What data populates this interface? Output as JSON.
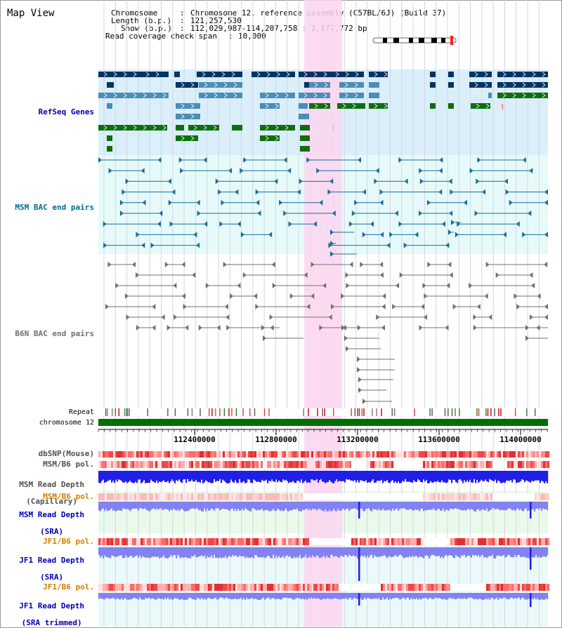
{
  "view": {
    "title": "Map View"
  },
  "header": {
    "chromosome_key": "Chromosome",
    "chromosome_value": "Chromosome 12, reference assembly (C57BL/6J) (Build 37)",
    "length_key": "Length (b.p.)",
    "length_value": "121,257,530",
    "show_key": "Show (b.p.)",
    "show_value": "112,029,987-114,207,758 : 2,177,772 bp",
    "coverage_key": "Read coverage check span",
    "coverage_value": "10,000"
  },
  "tracks": {
    "refseq": "RefSeq Genes",
    "msm_bac": "MSM BAC end pairs",
    "b6n_bac": "B6N BAC end pairs",
    "repeat": "Repeat",
    "chromosome": "chromosome 12",
    "dbsnp": "dbSNP(Mouse)",
    "msm_b6_pol_1": "MSM/B6 pol.",
    "msm_depth_cap_1": "MSM Read Depth",
    "msm_depth_cap_2": "(Capillary)",
    "msm_b6_pol_2": "MSM/B6 pol.",
    "msm_depth_sra_1": "MSM Read Depth",
    "msm_depth_sra_2": "(SRA)",
    "jf1_b6_pol_1": "JF1/B6 pol.",
    "jf1_depth_sra_1": "JF1 Read Depth",
    "jf1_depth_sra_2": "(SRA)",
    "jf1_b6_pol_2": "JF1/B6 pol.",
    "jf1_depth_trim_1": "JF1 Read Depth",
    "jf1_depth_trim_2": "(SRA trimmed)"
  },
  "axis": {
    "ticks": [
      "112400000",
      "112800000",
      "113200000",
      "113600000",
      "114000000"
    ]
  },
  "colors": {
    "refseq_bg": "#daeffa",
    "msm_bac_bg": "#e6fafa",
    "highlight": "#fbd5f0",
    "chromosome_bar": "#007000",
    "navy": "#003366",
    "steel": "#4a8db8",
    "green": "#0d6e0d",
    "msm_line": "#1a6d9a",
    "b6n_line": "#707070",
    "blue_label": "#0000b0",
    "teal_label": "#006c8e",
    "orange_label": "#d08000",
    "depth_blue": "#1f1fe6",
    "depth_light": "#8282f0"
  }
}
